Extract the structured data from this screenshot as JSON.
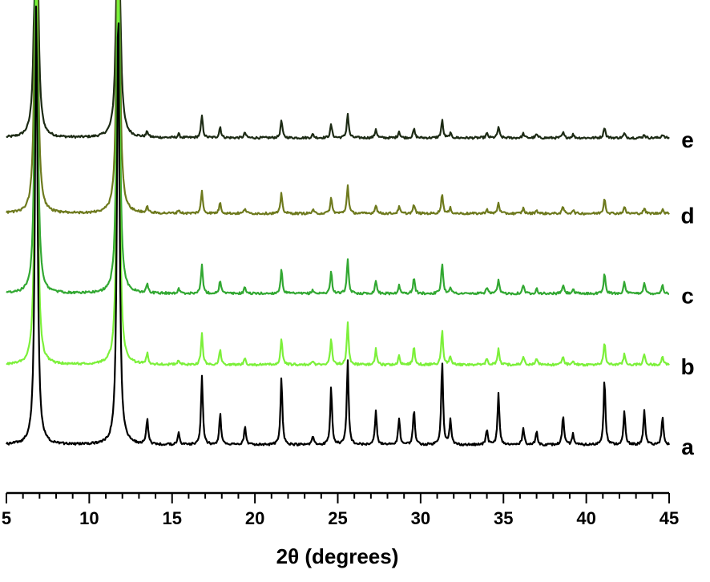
{
  "chart_data": {
    "type": "line",
    "title": "",
    "xlabel": "2θ (degrees)",
    "ylabel": "",
    "xlim": [
      5,
      45
    ],
    "x_ticks": [
      5,
      10,
      15,
      20,
      25,
      30,
      35,
      40,
      45
    ],
    "x_tick_labels": [
      "5",
      "10",
      "15",
      "20",
      "25",
      "30",
      "35",
      "40",
      "45"
    ],
    "grid": false,
    "peaks_2theta": [
      6.8,
      11.75,
      13.5,
      15.4,
      16.8,
      17.9,
      19.4,
      21.6,
      23.5,
      24.6,
      25.6,
      27.3,
      28.7,
      29.6,
      31.3,
      31.8,
      34.0,
      34.7,
      36.2,
      37.0,
      38.6,
      39.2,
      41.1,
      42.3,
      43.5,
      44.6
    ],
    "series": [
      {
        "name": "a",
        "color": "#000000",
        "offset": 0,
        "peak_heights": [
          100,
          100,
          6.0,
          2.5,
          15.5,
          7.0,
          4.0,
          15.5,
          2.0,
          13.0,
          19.0,
          7.5,
          6.0,
          8.0,
          19.0,
          5.5,
          3.5,
          11.5,
          4.0,
          3.0,
          6.5,
          2.5,
          15.0,
          7.5,
          8.0,
          6.5
        ]
      },
      {
        "name": "b",
        "color": "#7cf03a",
        "offset": 18,
        "peak_heights": [
          100,
          100,
          2.5,
          1.0,
          7.0,
          3.5,
          1.5,
          6.0,
          0.8,
          6.0,
          9.5,
          3.5,
          2.0,
          4.0,
          8.0,
          2.0,
          1.5,
          3.5,
          2.0,
          1.5,
          2.0,
          1.0,
          5.0,
          2.5,
          2.5,
          2.0
        ]
      },
      {
        "name": "c",
        "color": "#32a832",
        "offset": 34,
        "peak_heights": [
          100,
          100,
          2.0,
          1.0,
          6.5,
          3.0,
          1.5,
          5.5,
          0.8,
          5.0,
          7.5,
          3.0,
          1.8,
          3.5,
          7.0,
          1.5,
          1.5,
          3.0,
          2.0,
          1.2,
          2.0,
          1.0,
          4.5,
          2.5,
          2.5,
          2.0
        ]
      },
      {
        "name": "d",
        "color": "#6e7a1e",
        "offset": 52,
        "peak_heights": [
          100,
          100,
          1.5,
          0.8,
          5.0,
          2.5,
          1.2,
          4.5,
          0.8,
          3.5,
          6.5,
          2.0,
          1.5,
          2.0,
          4.5,
          1.2,
          1.0,
          2.5,
          1.2,
          0.8,
          1.5,
          0.8,
          3.5,
          1.5,
          1.2,
          1.0
        ]
      },
      {
        "name": "e",
        "color": "#1c2a14",
        "offset": 69,
        "peak_heights": [
          100,
          100,
          1.3,
          0.8,
          5.0,
          2.5,
          1.2,
          4.0,
          0.8,
          3.0,
          5.5,
          2.0,
          1.5,
          2.0,
          4.0,
          1.0,
          1.0,
          2.5,
          1.0,
          0.8,
          1.2,
          0.8,
          2.5,
          1.0,
          0.8,
          0.8
        ]
      }
    ]
  }
}
